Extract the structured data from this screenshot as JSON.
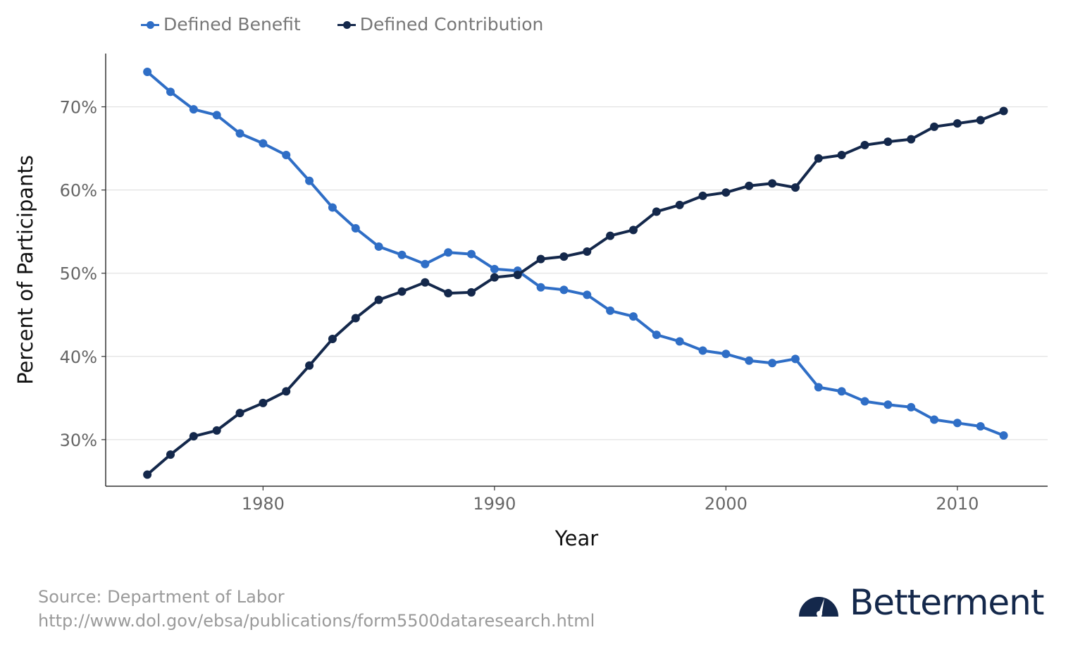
{
  "legend": [
    {
      "label": "Defined Benefit",
      "color": "#2f6ec6"
    },
    {
      "label": "Defined Contribution",
      "color": "#14284b"
    }
  ],
  "source": {
    "line1": "Source: Department of Labor",
    "line2": "http://www.dol.gov/ebsa/publications/form5500dataresearch.html"
  },
  "brand": {
    "name": "Betterment",
    "icon": "speedometer-logo-icon",
    "color": "#14284b"
  },
  "chart_data": {
    "type": "line",
    "title": "",
    "xlabel": "Year",
    "ylabel": "Percent of Participants",
    "xlim": [
      1973.2,
      2013.9
    ],
    "ylim": [
      24.4,
      76.4
    ],
    "xticks": [
      1980,
      1990,
      2000,
      2010
    ],
    "yticks": [
      30,
      40,
      50,
      60,
      70
    ],
    "ytick_labels": [
      "30%",
      "40%",
      "50%",
      "60%",
      "70%"
    ],
    "grid": "horizontal",
    "legend_position": "top-left",
    "x": [
      1975,
      1976,
      1977,
      1978,
      1979,
      1980,
      1981,
      1982,
      1983,
      1984,
      1985,
      1986,
      1987,
      1988,
      1989,
      1990,
      1991,
      1992,
      1993,
      1994,
      1995,
      1996,
      1997,
      1998,
      1999,
      2000,
      2001,
      2002,
      2003,
      2004,
      2005,
      2006,
      2007,
      2008,
      2009,
      2010,
      2011,
      2012
    ],
    "series": [
      {
        "name": "Defined Benefit",
        "color": "#2f6ec6",
        "values": [
          74.2,
          71.8,
          69.7,
          69.0,
          66.8,
          65.6,
          64.2,
          61.1,
          57.9,
          55.4,
          53.2,
          52.2,
          51.1,
          52.5,
          52.3,
          50.5,
          50.3,
          48.3,
          48.0,
          47.4,
          45.5,
          44.8,
          42.6,
          41.8,
          40.7,
          40.3,
          39.5,
          39.2,
          39.7,
          36.3,
          35.8,
          34.6,
          34.2,
          33.9,
          32.4,
          32.0,
          31.6,
          30.5
        ]
      },
      {
        "name": "Defined Contribution",
        "color": "#14284b",
        "values": [
          25.8,
          28.2,
          30.4,
          31.1,
          33.2,
          34.4,
          35.8,
          38.9,
          42.1,
          44.6,
          46.8,
          47.8,
          48.9,
          47.6,
          47.7,
          49.5,
          49.8,
          51.7,
          52.0,
          52.6,
          54.5,
          55.2,
          57.4,
          58.2,
          59.3,
          59.7,
          60.5,
          60.8,
          60.3,
          63.8,
          64.2,
          65.4,
          65.8,
          66.1,
          67.6,
          68.0,
          68.4,
          69.5
        ]
      }
    ]
  }
}
